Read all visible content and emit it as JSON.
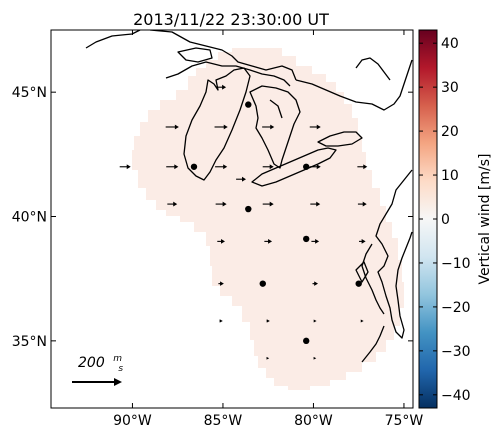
{
  "title": "2013/11/22 23:30:00 UT",
  "map": {
    "lon_range": [
      -94.5,
      -74.5
    ],
    "lat_range": [
      32.3,
      47.5
    ],
    "x_ticks": [
      {
        "value": -90,
        "label": "90°W"
      },
      {
        "value": -85,
        "label": "85°W"
      },
      {
        "value": -80,
        "label": "80°W"
      },
      {
        "value": -75,
        "label": "75°W"
      }
    ],
    "y_ticks": [
      {
        "value": 45,
        "label": "45°N"
      },
      {
        "value": 40,
        "label": "40°N"
      },
      {
        "value": 35,
        "label": "35°N"
      }
    ],
    "land_color": "#000000",
    "field_color": "#fbece6"
  },
  "radars": [
    {
      "lon": -83.6,
      "lat": 44.5
    },
    {
      "lon": -86.6,
      "lat": 42.0
    },
    {
      "lon": -80.4,
      "lat": 42.0
    },
    {
      "lon": -83.6,
      "lat": 40.3
    },
    {
      "lon": -80.4,
      "lat": 39.1
    },
    {
      "lon": -82.8,
      "lat": 37.3
    },
    {
      "lon": -77.5,
      "lat": 37.3
    },
    {
      "lon": -80.4,
      "lat": 35.0
    }
  ],
  "wind_vectors": [
    {
      "lon": -85.1,
      "lat": 45.2,
      "u": 45
    },
    {
      "lon": -87.8,
      "lat": 43.6,
      "u": 60
    },
    {
      "lon": -85.1,
      "lat": 43.6,
      "u": 60
    },
    {
      "lon": -82.5,
      "lat": 43.6,
      "u": 55
    },
    {
      "lon": -79.9,
      "lat": 43.6,
      "u": 50
    },
    {
      "lon": -90.4,
      "lat": 42.0,
      "u": 50
    },
    {
      "lon": -87.8,
      "lat": 42.0,
      "u": 55
    },
    {
      "lon": -85.1,
      "lat": 42.0,
      "u": 55
    },
    {
      "lon": -82.5,
      "lat": 42.0,
      "u": 50
    },
    {
      "lon": -79.9,
      "lat": 42.0,
      "u": 50
    },
    {
      "lon": -77.3,
      "lat": 42.0,
      "u": 45
    },
    {
      "lon": -84.0,
      "lat": 41.5,
      "u": 45
    },
    {
      "lon": -87.8,
      "lat": 40.5,
      "u": 45
    },
    {
      "lon": -85.1,
      "lat": 40.5,
      "u": 50
    },
    {
      "lon": -82.5,
      "lat": 40.5,
      "u": 50
    },
    {
      "lon": -79.9,
      "lat": 40.5,
      "u": 45
    },
    {
      "lon": -77.3,
      "lat": 40.5,
      "u": 40
    },
    {
      "lon": -85.1,
      "lat": 39.0,
      "u": 35
    },
    {
      "lon": -82.5,
      "lat": 39.0,
      "u": 35
    },
    {
      "lon": -79.9,
      "lat": 39.0,
      "u": 35
    },
    {
      "lon": -77.3,
      "lat": 39.0,
      "u": 30
    },
    {
      "lon": -85.1,
      "lat": 37.3,
      "u": 25
    },
    {
      "lon": -79.9,
      "lat": 37.3,
      "u": 25
    },
    {
      "lon": -85.1,
      "lat": 35.8,
      "u": 15
    },
    {
      "lon": -82.5,
      "lat": 35.8,
      "u": 15
    },
    {
      "lon": -79.9,
      "lat": 35.8,
      "u": 12
    },
    {
      "lon": -77.3,
      "lat": 35.8,
      "u": 12
    },
    {
      "lon": -82.5,
      "lat": 34.3,
      "u": 8
    },
    {
      "lon": -79.9,
      "lat": 34.3,
      "u": 8
    }
  ],
  "reference_arrow": {
    "label_value": "200",
    "label_num": "m",
    "label_den": "s",
    "speed": 200
  },
  "colorbar": {
    "label": "Vertical wind [m/s]",
    "min": -43,
    "max": 43,
    "ticks": [
      40,
      30,
      20,
      10,
      0,
      -10,
      -20,
      -30,
      -40
    ],
    "tick_labels": [
      "40",
      "30",
      "20",
      "10",
      "0",
      "−10",
      "−20",
      "−30",
      "−40"
    ],
    "stops": [
      "#053061",
      "#2166ac",
      "#4393c3",
      "#92c5de",
      "#d1e5f0",
      "#f7f7f7",
      "#fddbc7",
      "#f4a582",
      "#d6604d",
      "#b2182b",
      "#67001f"
    ]
  }
}
